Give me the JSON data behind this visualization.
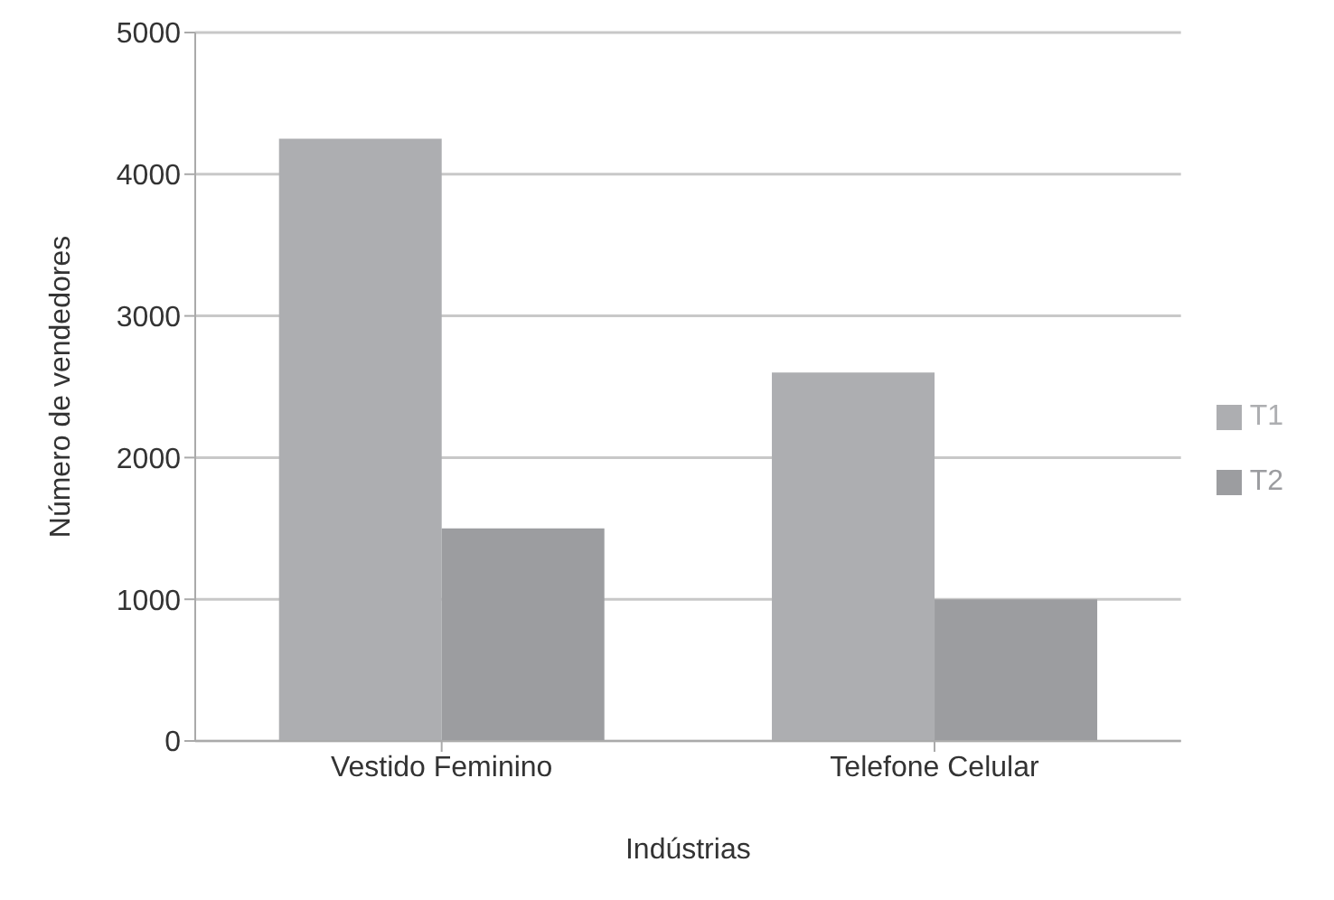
{
  "chart_data": {
    "type": "bar",
    "xlabel": "Indústrias",
    "ylabel": "Número de vendedores",
    "categories": [
      "Vestido Feminino",
      "Telefone Celular"
    ],
    "series": [
      {
        "name": "T1",
        "color": "#adaeb1",
        "values": [
          4250,
          2600
        ]
      },
      {
        "name": "T2",
        "color": "#9c9da0",
        "values": [
          1500,
          1000
        ]
      }
    ],
    "ylim": [
      0,
      5000
    ],
    "yticks": [
      0,
      1000,
      2000,
      3000,
      4000,
      5000
    ],
    "grid": "y",
    "legend": "right"
  }
}
